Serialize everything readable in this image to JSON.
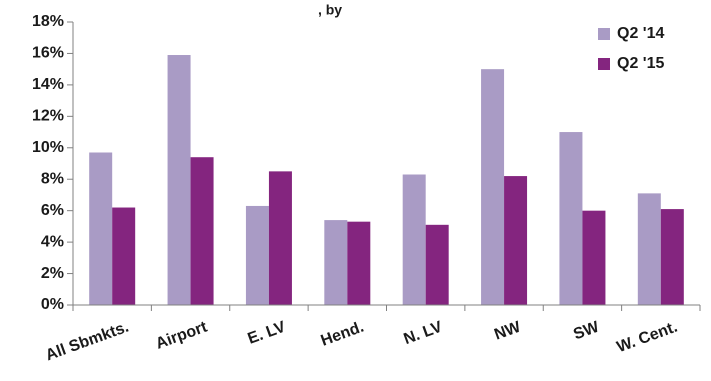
{
  "chart_data": {
    "type": "bar",
    "title_fragment": ", by",
    "categories": [
      "All Sbmkts.",
      "Airport",
      "E. LV",
      "Hend.",
      "N. LV",
      "NW",
      "SW",
      "W. Cent."
    ],
    "series": [
      {
        "name": "Q2 '14",
        "color": "#a99bc5",
        "values": [
          9.7,
          15.9,
          6.3,
          5.4,
          8.3,
          15.0,
          11.0,
          7.1
        ]
      },
      {
        "name": "Q2 '15",
        "color": "#84257f",
        "values": [
          6.2,
          9.4,
          8.5,
          5.3,
          5.1,
          8.2,
          6.0,
          6.1
        ]
      }
    ],
    "y_ticks": [
      "0%",
      "2%",
      "4%",
      "6%",
      "8%",
      "10%",
      "12%",
      "14%",
      "16%",
      "18%"
    ],
    "ylim": [
      0,
      18
    ],
    "ylabel_unit": "%",
    "grid": false,
    "legend_position": "top-right"
  }
}
